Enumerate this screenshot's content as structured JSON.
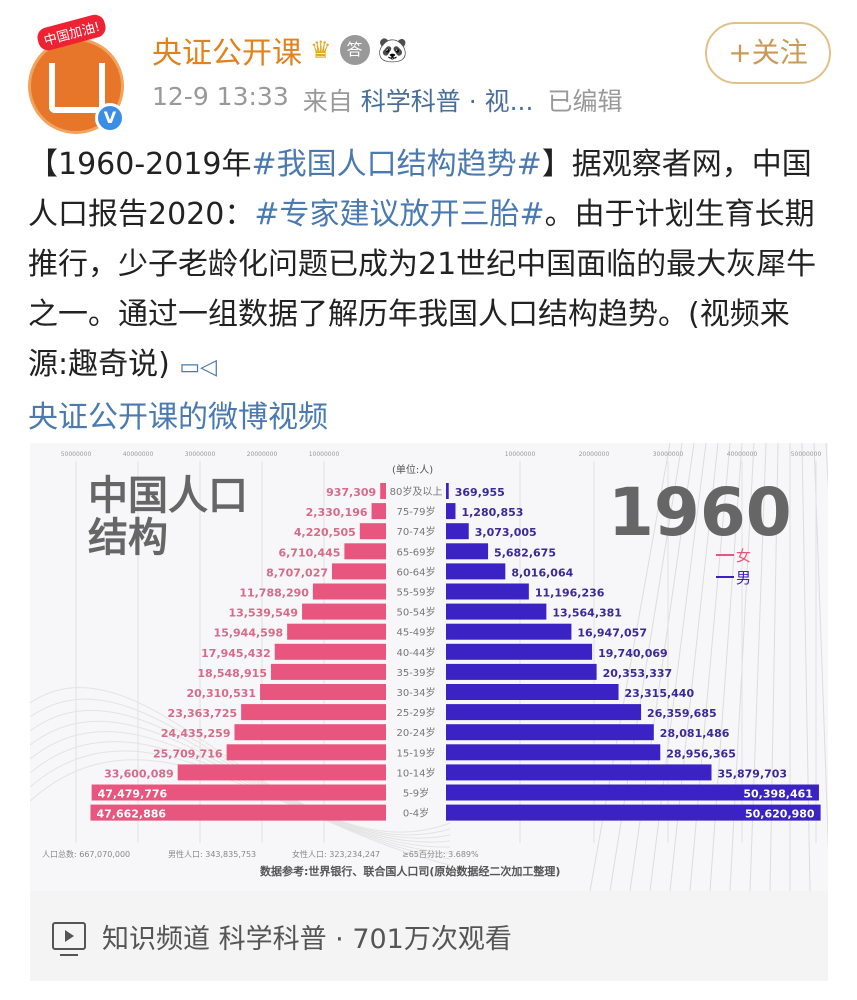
{
  "post": {
    "avatar_badge": "中国加油!",
    "author": "央证公开课",
    "author_badges": [
      "crown-icon",
      "answer-medal-icon",
      "panda-icon"
    ],
    "answer_medal_text": "答",
    "timestamp": "12-9 13:33",
    "from_label": "来自",
    "source": "科学科普 · 视...",
    "edited": "已编辑",
    "follow_label": "+关注",
    "text": {
      "p1": "【1960-2019年",
      "tag1": "#我国人口结构趋势#",
      "p2": "】据观察者网，中国人口报告2020：",
      "tag2": "#专家建议放开三胎#",
      "p3": "。由于计划生育长期推行，少子老龄化问题已成为21世纪中国面临的最大灰犀牛之一。通过一组数据了解历年我国人口结构趋势。(视频来源:趣奇说)",
      "video_link": "央证公开课的微博视频"
    },
    "footer": {
      "channel": "知识频道 科学科普 · 701万次观看"
    }
  },
  "chart_data": {
    "type": "bar",
    "title": "中国人口结构",
    "year": "1960",
    "unit": "(单位:人)",
    "x_ticks": [
      "10000000",
      "20000000",
      "30000000",
      "40000000",
      "50000000"
    ],
    "legend": [
      {
        "name": "女",
        "color": "#e8557e"
      },
      {
        "name": "男",
        "color": "#3b22c4"
      }
    ],
    "categories": [
      "80岁及以上",
      "75-79岁",
      "70-74岁",
      "65-69岁",
      "60-64岁",
      "55-59岁",
      "50-54岁",
      "45-49岁",
      "40-44岁",
      "35-39岁",
      "30-34岁",
      "25-29岁",
      "20-24岁",
      "15-19岁",
      "10-14岁",
      "5-9岁",
      "0-4岁"
    ],
    "series": [
      {
        "name": "女",
        "side": "left",
        "values": [
          937309,
          2330196,
          4220505,
          6710445,
          8707027,
          11788290,
          13539549,
          15944598,
          17945432,
          18548915,
          20310531,
          23363725,
          24435259,
          25709716,
          33600089,
          47479776,
          47662886
        ],
        "labels": [
          "937,309",
          "2,330,196",
          "4,220,505",
          "6,710,445",
          "8,707,027",
          "11,788,290",
          "13,539,549",
          "15,944,598",
          "17,945,432",
          "18,548,915",
          "20,310,531",
          "23,363,725",
          "24,435,259",
          "25,709,716",
          "33,600,089",
          "47,479,776",
          "47,662,886"
        ]
      },
      {
        "name": "男",
        "side": "right",
        "values": [
          369955,
          1280853,
          3073005,
          5682675,
          8016064,
          11196236,
          13564381,
          16947057,
          19740069,
          20353337,
          23315440,
          26359685,
          28081486,
          28956365,
          35879703,
          50398461,
          50620980
        ],
        "labels": [
          "369,955",
          "1,280,853",
          "3,073,005",
          "5,682,675",
          "8,016,064",
          "11,196,236",
          "13,564,381",
          "16,947,057",
          "19,740,069",
          "20,353,337",
          "23,315,440",
          "26,359,685",
          "28,081,486",
          "28,956,365",
          "35,879,703",
          "50,398,461",
          "50,620,980"
        ]
      }
    ],
    "summary": [
      "人口总数: 667,070,000",
      "男性人口: 343,835,753",
      "女性人口: 323,234,247",
      "≥65百分比: 3.689%"
    ],
    "source_note": "数据参考:世界银行、联合国人口司(原始数据经二次加工整理)"
  }
}
